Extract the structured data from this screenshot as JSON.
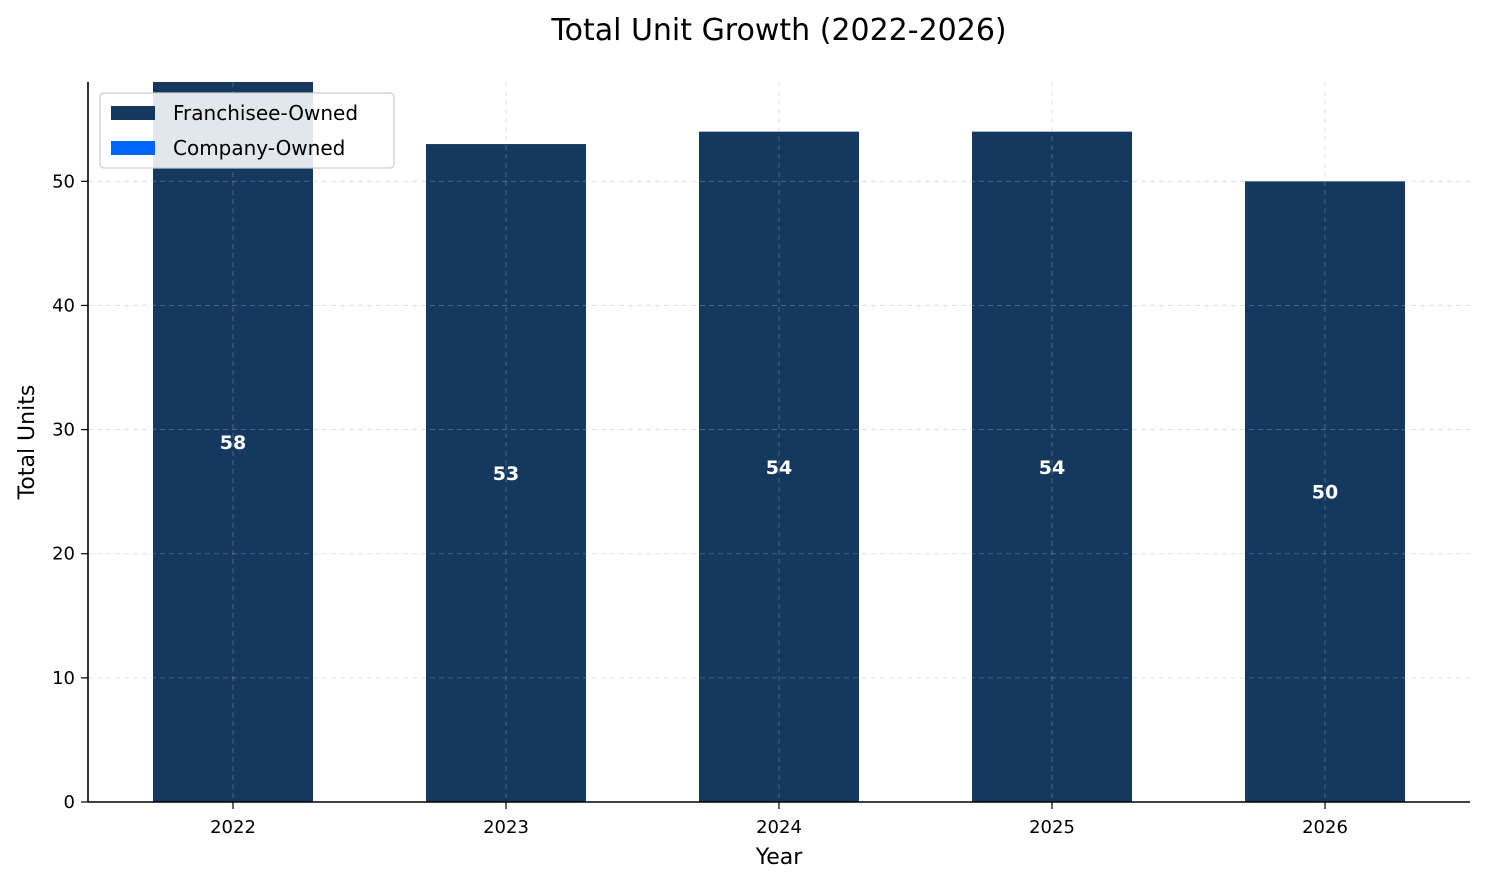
{
  "chart_data": {
    "type": "bar",
    "stacked": true,
    "title": "Total Unit Growth (2022-2026)",
    "xlabel": "Year",
    "ylabel": "Total Units",
    "categories": [
      "2022",
      "2023",
      "2024",
      "2025",
      "2026"
    ],
    "series": [
      {
        "name": "Franchisee-Owned",
        "color": "#15385f",
        "values": [
          58,
          53,
          54,
          54,
          50
        ]
      },
      {
        "name": "Company-Owned",
        "color": "#0066ff",
        "values": [
          0,
          0,
          0,
          0,
          0
        ]
      }
    ],
    "data_labels": [
      "58",
      "53",
      "54",
      "54",
      "50"
    ],
    "ylim": [
      0,
      58
    ],
    "yticks": [
      0,
      10,
      20,
      30,
      40,
      50
    ],
    "grid": true,
    "legend_position": "upper-left"
  }
}
